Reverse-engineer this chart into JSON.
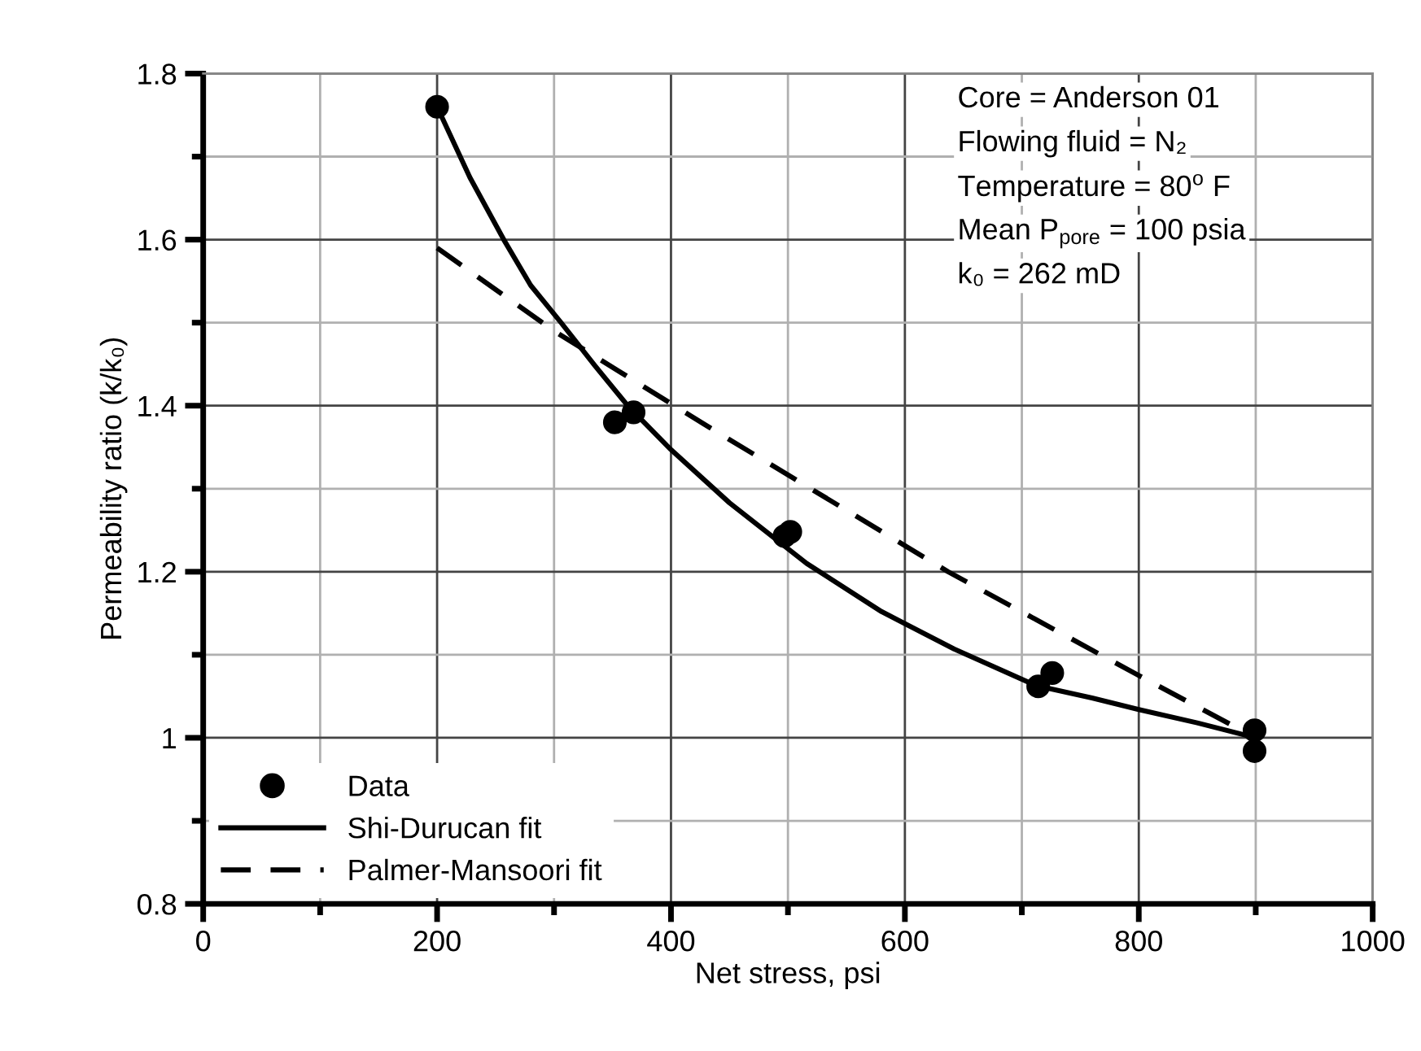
{
  "chart_data": {
    "type": "scatter",
    "xlabel": "Net stress, psi",
    "ylabel": "Permeability ratio (k/k₀)",
    "annotations": [
      "Core = Anderson 01",
      "Flowing fluid = N₂",
      "Temperature = 80$^{o}$ F",
      "Mean P$_{pore}$ = 100 psia",
      "k₀ = 262 mD"
    ],
    "series": [
      {
        "name": "Data",
        "color": "#000000",
        "marker": "circle",
        "x": [
          200,
          352,
          368,
          497,
          502,
          714,
          726,
          899,
          899
        ],
        "values": [
          1.76,
          1.38,
          1.392,
          1.243,
          1.248,
          1.062,
          1.078,
          1.009,
          0.984
        ]
      },
      {
        "name": "Shi-Durucan fit",
        "type": "line",
        "color": "#000000",
        "line_style": "solid",
        "marker": "none",
        "x": [
          200,
          228,
          257,
          280,
          306,
          335,
          363,
          400,
          450,
          516,
          580,
          642,
          712,
          760,
          800,
          850,
          900
        ],
        "values": [
          1.76,
          1.675,
          1.6,
          1.545,
          1.5,
          1.448,
          1.4,
          1.347,
          1.283,
          1.21,
          1.152,
          1.107,
          1.063,
          1.048,
          1.034,
          1.018,
          1.0
        ]
      },
      {
        "name": "Palmer-Mansoori fit",
        "type": "line",
        "color": "#000000",
        "line_style": "dashed",
        "marker": "none",
        "x": [
          200,
          300,
          428,
          637,
          800,
          900
        ],
        "values": [
          1.59,
          1.49,
          1.378,
          1.2,
          1.075,
          1.0
        ]
      }
    ],
    "xlim": [
      0,
      1000
    ],
    "ylim": [
      0.8,
      1.8
    ],
    "xticks": [
      0,
      {
        "value": 100,
        "label": null
      },
      200,
      {
        "value": 300,
        "label": null
      },
      400,
      {
        "value": 500,
        "label": null
      },
      600,
      {
        "value": 700,
        "label": null
      },
      800,
      {
        "value": 900,
        "label": null
      },
      1000
    ],
    "yticks": [
      0.8,
      {
        "value": 0.9,
        "label": null
      },
      1,
      {
        "value": 1.1,
        "label": null
      },
      1.2,
      {
        "value": 1.3,
        "label": null
      },
      1.4,
      {
        "value": 1.5,
        "label": null
      },
      1.6,
      {
        "value": 1.7,
        "label": null
      },
      1.8
    ],
    "grid": true,
    "legend": "bottom left"
  }
}
